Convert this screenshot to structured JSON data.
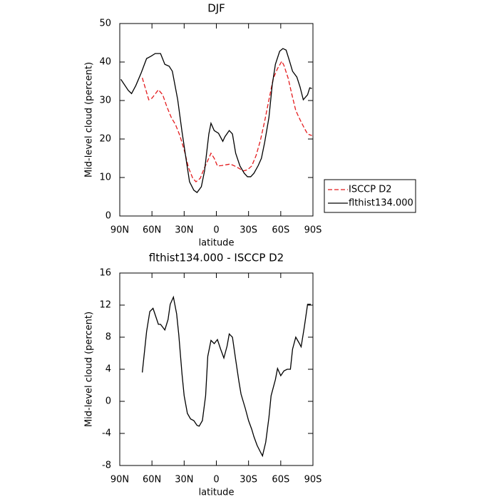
{
  "chart_data": [
    {
      "type": "line",
      "title": "DJF",
      "ylabel": "Mid-level cloud (percent)",
      "xlabel": "latitude",
      "xlim": [
        90,
        -90
      ],
      "xticks": [
        {
          "value": 90,
          "label": "90N"
        },
        {
          "value": 60,
          "label": "60N"
        },
        {
          "value": 30,
          "label": "30N"
        },
        0,
        {
          "value": -30,
          "label": "30S"
        },
        {
          "value": -60,
          "label": "60S"
        },
        {
          "value": -90,
          "label": "90S"
        }
      ],
      "ylim": [
        0,
        50
      ],
      "yticks": [
        0,
        10,
        20,
        30,
        40,
        50
      ],
      "legend": "right",
      "series": [
        {
          "name": "ISCCP D2",
          "color": "#e41a1c",
          "linestyle": "dashed",
          "x": [
            69,
            63,
            60,
            54,
            50,
            46,
            42,
            38,
            34,
            30,
            26,
            22,
            19,
            15,
            11,
            8,
            5,
            2,
            -1,
            -5,
            -9,
            -13,
            -17,
            -21,
            -25,
            -29,
            -33,
            -37,
            -41,
            -45,
            -49,
            -53,
            -57,
            -61,
            -63,
            -67,
            -70,
            -74,
            -78,
            -82,
            -85,
            -89
          ],
          "values": [
            35.9,
            30.2,
            30.6,
            32.8,
            31.5,
            28.3,
            25.6,
            23.7,
            20.9,
            17.2,
            12.6,
            9.8,
            8.9,
            9.8,
            12.6,
            14.4,
            16.3,
            15,
            13,
            13.1,
            13.3,
            13.5,
            13,
            12.4,
            11.7,
            12,
            13,
            15.7,
            19.6,
            24.6,
            30.2,
            35.7,
            38.3,
            40.2,
            39.1,
            35.7,
            32,
            27.4,
            25,
            22.8,
            21.3,
            20.9
          ]
        },
        {
          "name": "flthist134.000",
          "color": "#000000",
          "linestyle": "solid",
          "x": [
            89,
            82,
            79,
            75,
            70,
            65,
            61,
            57,
            52,
            48,
            44,
            41,
            36,
            32,
            28,
            25,
            21,
            18,
            14,
            11,
            7,
            5,
            2,
            -2,
            -6,
            -8,
            -12,
            -15,
            -18,
            -22,
            -26,
            -29,
            -32,
            -35,
            -39,
            -42,
            -45,
            -49,
            -52,
            -55,
            -59,
            -62,
            -65,
            -68,
            -71,
            -75,
            -78,
            -81,
            -85,
            -87,
            -89
          ],
          "values": [
            35.5,
            32.6,
            31.8,
            33.9,
            37.2,
            40.9,
            41.5,
            42.2,
            42.2,
            39.4,
            38.9,
            37.6,
            30.2,
            21.9,
            14.4,
            8.9,
            6.7,
            6.1,
            7.6,
            11.7,
            21.3,
            24.1,
            22.2,
            21.5,
            19.4,
            20.6,
            22.2,
            21.3,
            16.3,
            13,
            11.1,
            10.2,
            10.2,
            11.1,
            13.1,
            15,
            19.1,
            25.6,
            33.9,
            39.4,
            42.8,
            43.5,
            43.1,
            40.4,
            37.6,
            36.1,
            33.5,
            30.2,
            31.5,
            33.3,
            33.1
          ]
        }
      ]
    },
    {
      "type": "line",
      "title": "flthist134.000 - ISCCP D2",
      "ylabel": "Mid-level cloud (percent)",
      "xlabel": "latitude",
      "xlim": [
        90,
        -90
      ],
      "xticks": [
        {
          "value": 90,
          "label": "90N"
        },
        {
          "value": 60,
          "label": "60N"
        },
        {
          "value": 30,
          "label": "30N"
        },
        0,
        {
          "value": -30,
          "label": "30S"
        },
        {
          "value": -60,
          "label": "60S"
        },
        {
          "value": -90,
          "label": "90S"
        }
      ],
      "ylim": [
        -8,
        16
      ],
      "yticks": [
        -8,
        -4,
        0,
        4,
        8,
        12,
        16
      ],
      "series": [
        {
          "color": "#000000",
          "linestyle": "solid",
          "x": [
            69,
            65,
            62,
            59,
            57,
            54,
            52,
            48,
            45,
            43,
            40,
            37,
            35,
            32,
            30,
            27,
            24,
            21,
            18,
            16,
            13,
            10,
            8,
            5,
            2,
            -1,
            -4,
            -7,
            -10,
            -12,
            -15,
            -18,
            -21,
            -23,
            -27,
            -30,
            -33,
            -35,
            -38,
            -41,
            -43,
            -46,
            -49,
            -51,
            -55,
            -57,
            -60,
            -63,
            -66,
            -69,
            -71,
            -74,
            -77,
            -79,
            -82,
            -85,
            -88
          ],
          "values": [
            3.6,
            8.7,
            11.2,
            11.6,
            10.8,
            9.6,
            9.6,
            8.9,
            10.2,
            12.1,
            13,
            10.9,
            8.3,
            3.4,
            0.7,
            -1.5,
            -2.2,
            -2.4,
            -3,
            -3.1,
            -2.4,
            0.7,
            5.6,
            7.6,
            7.2,
            7.7,
            6.5,
            5.4,
            6.9,
            8.4,
            8,
            5.2,
            2.5,
            0.9,
            -0.9,
            -2.4,
            -3.5,
            -4.4,
            -5.5,
            -6.3,
            -6.8,
            -5.1,
            -2,
            0.7,
            2.7,
            4.1,
            3.2,
            3.8,
            4,
            4,
            6.5,
            8,
            7.3,
            6.8,
            9.3,
            12.1,
            12.1
          ]
        }
      ]
    }
  ]
}
